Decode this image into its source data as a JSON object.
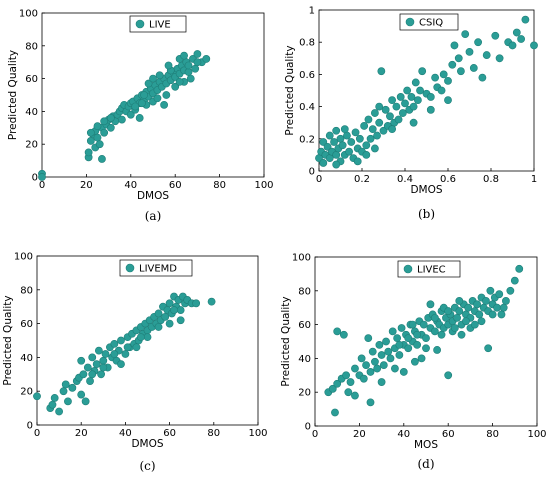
{
  "colors": {
    "marker": "#2a9d96",
    "marker_edge": "#1f7f79",
    "axis": "#000000"
  },
  "chart_data": [
    {
      "type": "scatter",
      "caption": "(a)",
      "xlabel": "DMOS",
      "ylabel": "Predicted Quality",
      "xlim": [
        0,
        100
      ],
      "ylim": [
        0,
        100
      ],
      "xticks": [
        "0",
        "20",
        "40",
        "60",
        "80",
        "100"
      ],
      "yticks": [
        "0",
        "20",
        "40",
        "60",
        "80",
        "100"
      ],
      "legend": "LIVE",
      "legend_position": "top-center",
      "grid": false,
      "points": [
        [
          0,
          2
        ],
        [
          0,
          0
        ],
        [
          21,
          12
        ],
        [
          21,
          15
        ],
        [
          22,
          22
        ],
        [
          23,
          26
        ],
        [
          24,
          18
        ],
        [
          24,
          28
        ],
        [
          25,
          24
        ],
        [
          26,
          20
        ],
        [
          27,
          30
        ],
        [
          27,
          11
        ],
        [
          28,
          27
        ],
        [
          29,
          32
        ],
        [
          30,
          35
        ],
        [
          31,
          30
        ],
        [
          32,
          37
        ],
        [
          33,
          34
        ],
        [
          34,
          38
        ],
        [
          35,
          40
        ],
        [
          36,
          42
        ],
        [
          37,
          44
        ],
        [
          38,
          40
        ],
        [
          39,
          43
        ],
        [
          40,
          45
        ],
        [
          40,
          38
        ],
        [
          41,
          46
        ],
        [
          42,
          41
        ],
        [
          43,
          48
        ],
        [
          44,
          45
        ],
        [
          45,
          50
        ],
        [
          46,
          47
        ],
        [
          47,
          52
        ],
        [
          48,
          49
        ],
        [
          49,
          54
        ],
        [
          50,
          51
        ],
        [
          51,
          56
        ],
        [
          52,
          53
        ],
        [
          53,
          58
        ],
        [
          54,
          55
        ],
        [
          55,
          60
        ],
        [
          56,
          57
        ],
        [
          57,
          62
        ],
        [
          58,
          59
        ],
        [
          59,
          64
        ],
        [
          60,
          61
        ],
        [
          61,
          66
        ],
        [
          62,
          63
        ],
        [
          63,
          68
        ],
        [
          64,
          65
        ],
        [
          65,
          70
        ],
        [
          66,
          64
        ],
        [
          67,
          60
        ],
        [
          68,
          72
        ],
        [
          70,
          75
        ],
        [
          72,
          70
        ],
        [
          74,
          72
        ],
        [
          62,
          72
        ],
        [
          55,
          44
        ],
        [
          50,
          46
        ],
        [
          46,
          50
        ],
        [
          42,
          43
        ],
        [
          58,
          65
        ],
        [
          60,
          55
        ],
        [
          64,
          58
        ],
        [
          66,
          68
        ],
        [
          56,
          50
        ],
        [
          53,
          62
        ],
        [
          47,
          44
        ],
        [
          44,
          36
        ],
        [
          36,
          35
        ],
        [
          31,
          36
        ],
        [
          25,
          31
        ],
        [
          28,
          34
        ],
        [
          22,
          27
        ],
        [
          48,
          57
        ],
        [
          57,
          68
        ],
        [
          62,
          58
        ],
        [
          69,
          66
        ],
        [
          70,
          70
        ],
        [
          64,
          74
        ],
        [
          52,
          48
        ],
        [
          50,
          60
        ],
        [
          45,
          45
        ]
      ]
    },
    {
      "type": "scatter",
      "caption": "(b)",
      "xlabel": "DMOS",
      "ylabel": "Predicted Quality",
      "xlim": [
        0,
        1
      ],
      "ylim": [
        0,
        1
      ],
      "xticks": [
        "0",
        "0.2",
        "0.4",
        "0.6",
        "0.8",
        "1"
      ],
      "yticks": [
        "0",
        "0.2",
        "0.4",
        "0.6",
        "0.8",
        "1"
      ],
      "legend": "CSIQ",
      "legend_position": "top-center",
      "grid": false,
      "points": [
        [
          0.0,
          0.08
        ],
        [
          0.01,
          0.12
        ],
        [
          0.02,
          0.05
        ],
        [
          0.02,
          0.18
        ],
        [
          0.03,
          0.1
        ],
        [
          0.04,
          0.15
        ],
        [
          0.05,
          0.08
        ],
        [
          0.05,
          0.22
        ],
        [
          0.06,
          0.12
        ],
        [
          0.07,
          0.18
        ],
        [
          0.08,
          0.1
        ],
        [
          0.08,
          0.25
        ],
        [
          0.09,
          0.14
        ],
        [
          0.1,
          0.2
        ],
        [
          0.1,
          0.06
        ],
        [
          0.11,
          0.16
        ],
        [
          0.12,
          0.1
        ],
        [
          0.13,
          0.22
        ],
        [
          0.14,
          0.12
        ],
        [
          0.15,
          0.18
        ],
        [
          0.16,
          0.08
        ],
        [
          0.17,
          0.24
        ],
        [
          0.18,
          0.14
        ],
        [
          0.19,
          0.2
        ],
        [
          0.2,
          0.12
        ],
        [
          0.21,
          0.28
        ],
        [
          0.22,
          0.16
        ],
        [
          0.23,
          0.32
        ],
        [
          0.24,
          0.2
        ],
        [
          0.25,
          0.26
        ],
        [
          0.26,
          0.36
        ],
        [
          0.27,
          0.22
        ],
        [
          0.28,
          0.3
        ],
        [
          0.29,
          0.62
        ],
        [
          0.3,
          0.25
        ],
        [
          0.31,
          0.38
        ],
        [
          0.32,
          0.28
        ],
        [
          0.33,
          0.34
        ],
        [
          0.34,
          0.44
        ],
        [
          0.35,
          0.3
        ],
        [
          0.36,
          0.4
        ],
        [
          0.37,
          0.32
        ],
        [
          0.38,
          0.46
        ],
        [
          0.39,
          0.36
        ],
        [
          0.4,
          0.42
        ],
        [
          0.41,
          0.5
        ],
        [
          0.42,
          0.38
        ],
        [
          0.43,
          0.46
        ],
        [
          0.44,
          0.4
        ],
        [
          0.45,
          0.55
        ],
        [
          0.46,
          0.44
        ],
        [
          0.47,
          0.5
        ],
        [
          0.48,
          0.62
        ],
        [
          0.5,
          0.48
        ],
        [
          0.52,
          0.46
        ],
        [
          0.54,
          0.58
        ],
        [
          0.55,
          0.52
        ],
        [
          0.57,
          0.5
        ],
        [
          0.58,
          0.6
        ],
        [
          0.6,
          0.56
        ],
        [
          0.62,
          0.66
        ],
        [
          0.63,
          0.78
        ],
        [
          0.65,
          0.7
        ],
        [
          0.66,
          0.62
        ],
        [
          0.68,
          0.85
        ],
        [
          0.7,
          0.74
        ],
        [
          0.72,
          0.64
        ],
        [
          0.74,
          0.8
        ],
        [
          0.76,
          0.58
        ],
        [
          0.78,
          0.72
        ],
        [
          0.82,
          0.84
        ],
        [
          0.84,
          0.7
        ],
        [
          0.88,
          0.8
        ],
        [
          0.9,
          0.78
        ],
        [
          0.92,
          0.86
        ],
        [
          0.94,
          0.82
        ],
        [
          0.96,
          0.94
        ],
        [
          1.0,
          0.78
        ],
        [
          0.18,
          0.06
        ],
        [
          0.22,
          0.1
        ],
        [
          0.26,
          0.14
        ],
        [
          0.34,
          0.26
        ],
        [
          0.44,
          0.3
        ],
        [
          0.52,
          0.38
        ],
        [
          0.6,
          0.44
        ],
        [
          0.08,
          0.04
        ],
        [
          0.12,
          0.26
        ],
        [
          0.28,
          0.4
        ]
      ]
    },
    {
      "type": "scatter",
      "caption": "(c)",
      "xlabel": "DMOS",
      "ylabel": "Predicted Quality",
      "xlim": [
        0,
        100
      ],
      "ylim": [
        0,
        100
      ],
      "xticks": [
        "0",
        "20",
        "40",
        "60",
        "80",
        "100"
      ],
      "yticks": [
        "0",
        "20",
        "40",
        "60",
        "80",
        "100"
      ],
      "legend": "LIVEMD",
      "legend_position": "top-left",
      "grid": false,
      "points": [
        [
          0,
          17
        ],
        [
          6,
          10
        ],
        [
          7,
          12
        ],
        [
          8,
          16
        ],
        [
          10,
          8
        ],
        [
          12,
          20
        ],
        [
          13,
          24
        ],
        [
          14,
          14
        ],
        [
          16,
          22
        ],
        [
          18,
          26
        ],
        [
          19,
          28
        ],
        [
          20,
          18
        ],
        [
          20,
          38
        ],
        [
          21,
          30
        ],
        [
          22,
          14
        ],
        [
          23,
          34
        ],
        [
          24,
          26
        ],
        [
          25,
          40
        ],
        [
          26,
          32
        ],
        [
          27,
          36
        ],
        [
          28,
          44
        ],
        [
          29,
          30
        ],
        [
          30,
          38
        ],
        [
          31,
          42
        ],
        [
          32,
          34
        ],
        [
          33,
          46
        ],
        [
          34,
          40
        ],
        [
          35,
          48
        ],
        [
          36,
          38
        ],
        [
          37,
          44
        ],
        [
          38,
          50
        ],
        [
          40,
          42
        ],
        [
          41,
          52
        ],
        [
          42,
          46
        ],
        [
          43,
          54
        ],
        [
          44,
          48
        ],
        [
          45,
          56
        ],
        [
          46,
          50
        ],
        [
          47,
          58
        ],
        [
          48,
          54
        ],
        [
          49,
          60
        ],
        [
          50,
          56
        ],
        [
          51,
          62
        ],
        [
          52,
          58
        ],
        [
          53,
          64
        ],
        [
          54,
          60
        ],
        [
          55,
          66
        ],
        [
          56,
          62
        ],
        [
          57,
          70
        ],
        [
          58,
          64
        ],
        [
          59,
          68
        ],
        [
          60,
          72
        ],
        [
          61,
          66
        ],
        [
          62,
          76
        ],
        [
          63,
          70
        ],
        [
          64,
          74
        ],
        [
          65,
          68
        ],
        [
          66,
          76
        ],
        [
          67,
          72
        ],
        [
          68,
          74
        ],
        [
          70,
          72
        ],
        [
          72,
          72
        ],
        [
          79,
          73
        ],
        [
          38,
          36
        ],
        [
          45,
          46
        ],
        [
          50,
          52
        ],
        [
          55,
          58
        ],
        [
          60,
          60
        ],
        [
          25,
          30
        ],
        [
          30,
          34
        ],
        [
          35,
          42
        ],
        [
          41,
          46
        ],
        [
          47,
          52
        ],
        [
          65,
          62
        ],
        [
          62,
          68
        ]
      ]
    },
    {
      "type": "scatter",
      "caption": "(d)",
      "xlabel": "MOS",
      "ylabel": "Predicted Quality",
      "xlim": [
        0,
        100
      ],
      "ylim": [
        0,
        100
      ],
      "xticks": [
        "0",
        "20",
        "40",
        "60",
        "80",
        "100"
      ],
      "yticks": [
        "0",
        "20",
        "40",
        "60",
        "80",
        "100"
      ],
      "legend": "LIVEC",
      "legend_position": "top-left",
      "grid": false,
      "points": [
        [
          6,
          20
        ],
        [
          8,
          22
        ],
        [
          9,
          8
        ],
        [
          10,
          25
        ],
        [
          10,
          56
        ],
        [
          12,
          28
        ],
        [
          13,
          54
        ],
        [
          14,
          30
        ],
        [
          15,
          20
        ],
        [
          16,
          26
        ],
        [
          18,
          34
        ],
        [
          18,
          18
        ],
        [
          20,
          30
        ],
        [
          21,
          40
        ],
        [
          22,
          28
        ],
        [
          23,
          36
        ],
        [
          24,
          52
        ],
        [
          25,
          14
        ],
        [
          25,
          32
        ],
        [
          26,
          44
        ],
        [
          27,
          38
        ],
        [
          28,
          34
        ],
        [
          29,
          48
        ],
        [
          30,
          42
        ],
        [
          31,
          36
        ],
        [
          32,
          50
        ],
        [
          33,
          44
        ],
        [
          34,
          40
        ],
        [
          35,
          56
        ],
        [
          36,
          46
        ],
        [
          37,
          52
        ],
        [
          38,
          42
        ],
        [
          39,
          58
        ],
        [
          40,
          48
        ],
        [
          41,
          54
        ],
        [
          42,
          46
        ],
        [
          43,
          60
        ],
        [
          44,
          50
        ],
        [
          45,
          56
        ],
        [
          46,
          48
        ],
        [
          47,
          62
        ],
        [
          48,
          54
        ],
        [
          49,
          60
        ],
        [
          50,
          52
        ],
        [
          51,
          64
        ],
        [
          52,
          58
        ],
        [
          53,
          66
        ],
        [
          54,
          56
        ],
        [
          55,
          62
        ],
        [
          56,
          60
        ],
        [
          57,
          68
        ],
        [
          58,
          58
        ],
        [
          59,
          64
        ],
        [
          60,
          30
        ],
        [
          60,
          60
        ],
        [
          61,
          66
        ],
        [
          62,
          62
        ],
        [
          63,
          70
        ],
        [
          64,
          64
        ],
        [
          65,
          68
        ],
        [
          66,
          60
        ],
        [
          67,
          72
        ],
        [
          68,
          66
        ],
        [
          69,
          70
        ],
        [
          70,
          64
        ],
        [
          71,
          74
        ],
        [
          72,
          68
        ],
        [
          73,
          72
        ],
        [
          74,
          66
        ],
        [
          75,
          76
        ],
        [
          76,
          70
        ],
        [
          77,
          74
        ],
        [
          78,
          68
        ],
        [
          79,
          80
        ],
        [
          80,
          72
        ],
        [
          81,
          76
        ],
        [
          82,
          70
        ],
        [
          83,
          78
        ],
        [
          84,
          66
        ],
        [
          86,
          74
        ],
        [
          88,
          80
        ],
        [
          90,
          86
        ],
        [
          92,
          93
        ],
        [
          55,
          45
        ],
        [
          48,
          40
        ],
        [
          45,
          38
        ],
        [
          40,
          32
        ],
        [
          62,
          56
        ],
        [
          66,
          54
        ],
        [
          70,
          58
        ],
        [
          75,
          62
        ],
        [
          78,
          46
        ],
        [
          58,
          70
        ],
        [
          52,
          72
        ],
        [
          50,
          46
        ],
        [
          44,
          60
        ],
        [
          36,
          34
        ],
        [
          30,
          26
        ],
        [
          57,
          54
        ],
        [
          63,
          58
        ],
        [
          68,
          62
        ],
        [
          72,
          60
        ],
        [
          80,
          66
        ],
        [
          85,
          70
        ],
        [
          65,
          74
        ],
        [
          60,
          68
        ],
        [
          54,
          64
        ],
        [
          46,
          54
        ],
        [
          42,
          52
        ],
        [
          38,
          48
        ]
      ]
    }
  ]
}
